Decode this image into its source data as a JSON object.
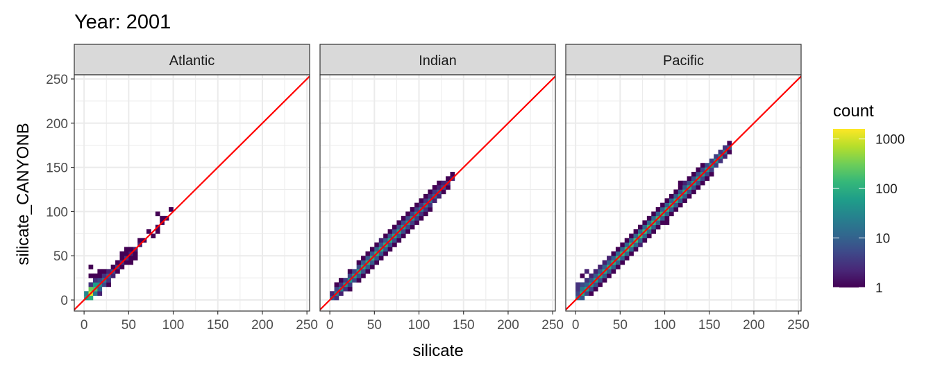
{
  "chart_data": {
    "type": "heatmap",
    "title": "Year: 2001",
    "xlabel": "silicate",
    "ylabel": "silicate_CANYONB",
    "xlim": [
      -11,
      253
    ],
    "ylim": [
      -12.5,
      254.7
    ],
    "xticks": [
      0,
      50,
      100,
      150,
      200,
      250
    ],
    "yticks": [
      0,
      50,
      100,
      150,
      200,
      250
    ],
    "bin_width": 5,
    "reference_line": {
      "slope": 1,
      "intercept": 0,
      "color": "#ff0000"
    },
    "legend": {
      "title": "count",
      "scale": "log10",
      "ticks": [
        1,
        10,
        100,
        1000
      ],
      "tick_labels": [
        "1",
        "10",
        "100",
        "1000"
      ],
      "limits": [
        1,
        1600
      ],
      "placement": "right"
    },
    "colormap": [
      "#440154",
      "#482878",
      "#3e4989",
      "#31688e",
      "#26828e",
      "#1f9e89",
      "#35b779",
      "#6ece58",
      "#b5de2b",
      "#fde725"
    ],
    "note_columns": "each column: x bin, counts at y offsets [-10,-5,0,+5,+10] from x",
    "facets": [
      {
        "name": "Atlantic",
        "columns": [
          {
            "x": 0,
            "c": [
              0,
              0,
              60,
              30,
              0
            ]
          },
          {
            "x": 5,
            "c": [
              0,
              100,
              1000,
              300,
              3
            ]
          },
          {
            "x": 10,
            "c": [
              0,
              20,
              200,
              60,
              3
            ]
          },
          {
            "x": 15,
            "c": [
              2,
              10,
              40,
              5,
              1
            ]
          },
          {
            "x": 20,
            "c": [
              0,
              5,
              20,
              3,
              1
            ]
          },
          {
            "x": 25,
            "c": [
              1,
              3,
              8,
              2,
              0
            ]
          },
          {
            "x": 30,
            "c": [
              0,
              2,
              5,
              1,
              0
            ]
          },
          {
            "x": 35,
            "c": [
              0,
              1,
              4,
              1,
              0
            ]
          },
          {
            "x": 40,
            "c": [
              0,
              1,
              3,
              1,
              1
            ]
          },
          {
            "x": 45,
            "c": [
              0,
              1,
              3,
              1,
              1
            ]
          },
          {
            "x": 50,
            "c": [
              1,
              1,
              2,
              1,
              0
            ]
          },
          {
            "x": 55,
            "c": [
              1,
              1,
              2,
              0,
              0
            ]
          },
          {
            "x": 60,
            "c": [
              0,
              0,
              2,
              1,
              0
            ]
          },
          {
            "x": 65,
            "c": [
              0,
              0,
              1,
              0,
              0
            ]
          },
          {
            "x": 80,
            "c": [
              0,
              1,
              1,
              0,
              0
            ]
          },
          {
            "x": 85,
            "c": [
              0,
              0,
              1,
              1,
              0
            ]
          },
          {
            "x": 90,
            "c": [
              0,
              0,
              1,
              0,
              0
            ]
          }
        ],
        "outliers": [
          [
            5,
            35,
            1
          ],
          [
            5,
            25,
            1
          ],
          [
            10,
            25,
            1
          ],
          [
            15,
            30,
            1
          ],
          [
            70,
            75,
            1
          ],
          [
            75,
            70,
            1
          ],
          [
            80,
            95,
            1
          ],
          [
            95,
            100,
            1
          ]
        ]
      },
      {
        "name": "Indian",
        "columns": [
          {
            "x": 0,
            "c": [
              0,
              0,
              8,
              2,
              0
            ]
          },
          {
            "x": 5,
            "c": [
              0,
              3,
              20,
              5,
              1
            ]
          },
          {
            "x": 10,
            "c": [
              0,
              2,
              30,
              3,
              1
            ]
          },
          {
            "x": 15,
            "c": [
              0,
              3,
              40,
              4,
              0
            ]
          },
          {
            "x": 20,
            "c": [
              1,
              4,
              50,
              5,
              1
            ]
          },
          {
            "x": 25,
            "c": [
              0,
              5,
              60,
              5,
              0
            ]
          },
          {
            "x": 30,
            "c": [
              1,
              6,
              70,
              6,
              1
            ]
          },
          {
            "x": 35,
            "c": [
              1,
              6,
              80,
              8,
              1
            ]
          },
          {
            "x": 40,
            "c": [
              1,
              8,
              90,
              8,
              1
            ]
          },
          {
            "x": 45,
            "c": [
              1,
              8,
              100,
              8,
              1
            ]
          },
          {
            "x": 50,
            "c": [
              1,
              8,
              100,
              10,
              1
            ]
          },
          {
            "x": 55,
            "c": [
              1,
              8,
              90,
              8,
              2
            ]
          },
          {
            "x": 60,
            "c": [
              1,
              8,
              90,
              8,
              1
            ]
          },
          {
            "x": 65,
            "c": [
              1,
              6,
              80,
              8,
              1
            ]
          },
          {
            "x": 70,
            "c": [
              1,
              6,
              70,
              6,
              1
            ]
          },
          {
            "x": 75,
            "c": [
              1,
              6,
              60,
              6,
              1
            ]
          },
          {
            "x": 80,
            "c": [
              1,
              5,
              50,
              5,
              1
            ]
          },
          {
            "x": 85,
            "c": [
              1,
              5,
              40,
              5,
              1
            ]
          },
          {
            "x": 90,
            "c": [
              1,
              4,
              40,
              4,
              1
            ]
          },
          {
            "x": 95,
            "c": [
              1,
              4,
              30,
              4,
              1
            ]
          },
          {
            "x": 100,
            "c": [
              1,
              3,
              25,
              3,
              1
            ]
          },
          {
            "x": 105,
            "c": [
              1,
              3,
              20,
              3,
              1
            ]
          },
          {
            "x": 110,
            "c": [
              1,
              3,
              15,
              3,
              1
            ]
          },
          {
            "x": 115,
            "c": [
              0,
              2,
              10,
              3,
              1
            ]
          },
          {
            "x": 120,
            "c": [
              0,
              2,
              8,
              2,
              1
            ]
          },
          {
            "x": 125,
            "c": [
              0,
              1,
              5,
              2,
              0
            ]
          },
          {
            "x": 130,
            "c": [
              0,
              1,
              3,
              1,
              0
            ]
          },
          {
            "x": 135,
            "c": [
              0,
              0,
              2,
              1,
              0
            ]
          }
        ],
        "outliers": []
      },
      {
        "name": "Pacific",
        "columns": [
          {
            "x": 0,
            "c": [
              0,
              0,
              20,
              5,
              3
            ]
          },
          {
            "x": 5,
            "c": [
              0,
              8,
              80,
              20,
              5
            ]
          },
          {
            "x": 10,
            "c": [
              0,
              5,
              60,
              10,
              3
            ]
          },
          {
            "x": 15,
            "c": [
              1,
              5,
              50,
              8,
              2
            ]
          },
          {
            "x": 20,
            "c": [
              1,
              6,
              60,
              8,
              2
            ]
          },
          {
            "x": 25,
            "c": [
              1,
              6,
              70,
              8,
              2
            ]
          },
          {
            "x": 30,
            "c": [
              1,
              8,
              80,
              10,
              2
            ]
          },
          {
            "x": 35,
            "c": [
              1,
              8,
              90,
              10,
              2
            ]
          },
          {
            "x": 40,
            "c": [
              1,
              10,
              100,
              10,
              1
            ]
          },
          {
            "x": 45,
            "c": [
              1,
              10,
              120,
              12,
              1
            ]
          },
          {
            "x": 50,
            "c": [
              1,
              10,
              130,
              12,
              1
            ]
          },
          {
            "x": 55,
            "c": [
              1,
              12,
              150,
              12,
              1
            ]
          },
          {
            "x": 60,
            "c": [
              1,
              12,
              150,
              12,
              1
            ]
          },
          {
            "x": 65,
            "c": [
              1,
              12,
              160,
              12,
              1
            ]
          },
          {
            "x": 70,
            "c": [
              2,
              12,
              160,
              12,
              1
            ]
          },
          {
            "x": 75,
            "c": [
              1,
              12,
              150,
              12,
              1
            ]
          },
          {
            "x": 80,
            "c": [
              1,
              12,
              150,
              12,
              1
            ]
          },
          {
            "x": 85,
            "c": [
              1,
              10,
              140,
              12,
              1
            ]
          },
          {
            "x": 90,
            "c": [
              1,
              10,
              130,
              10,
              1
            ]
          },
          {
            "x": 95,
            "c": [
              1,
              10,
              120,
              10,
              1
            ]
          },
          {
            "x": 100,
            "c": [
              1,
              10,
              110,
              10,
              1
            ]
          },
          {
            "x": 105,
            "c": [
              1,
              8,
              100,
              10,
              1
            ]
          },
          {
            "x": 110,
            "c": [
              1,
              8,
              90,
              8,
              1
            ]
          },
          {
            "x": 115,
            "c": [
              1,
              8,
              80,
              8,
              1
            ]
          },
          {
            "x": 120,
            "c": [
              1,
              8,
              80,
              8,
              2
            ]
          },
          {
            "x": 125,
            "c": [
              1,
              6,
              70,
              6,
              1
            ]
          },
          {
            "x": 130,
            "c": [
              1,
              6,
              60,
              6,
              1
            ]
          },
          {
            "x": 135,
            "c": [
              1,
              6,
              60,
              6,
              1
            ]
          },
          {
            "x": 140,
            "c": [
              1,
              5,
              50,
              5,
              1
            ]
          },
          {
            "x": 145,
            "c": [
              1,
              5,
              50,
              5,
              0
            ]
          },
          {
            "x": 150,
            "c": [
              1,
              4,
              40,
              4,
              0
            ]
          },
          {
            "x": 155,
            "c": [
              0,
              4,
              40,
              4,
              0
            ]
          },
          {
            "x": 160,
            "c": [
              0,
              3,
              30,
              3,
              0
            ]
          },
          {
            "x": 165,
            "c": [
              0,
              2,
              20,
              3,
              0
            ]
          },
          {
            "x": 170,
            "c": [
              0,
              1,
              8,
              1,
              0
            ]
          }
        ],
        "outliers": [
          [
            5,
            25,
            1
          ],
          [
            10,
            30,
            2
          ],
          [
            0,
            15,
            3
          ],
          [
            100,
            85,
            1
          ],
          [
            145,
            135,
            1
          ],
          [
            115,
            130,
            1
          ]
        ]
      }
    ]
  }
}
